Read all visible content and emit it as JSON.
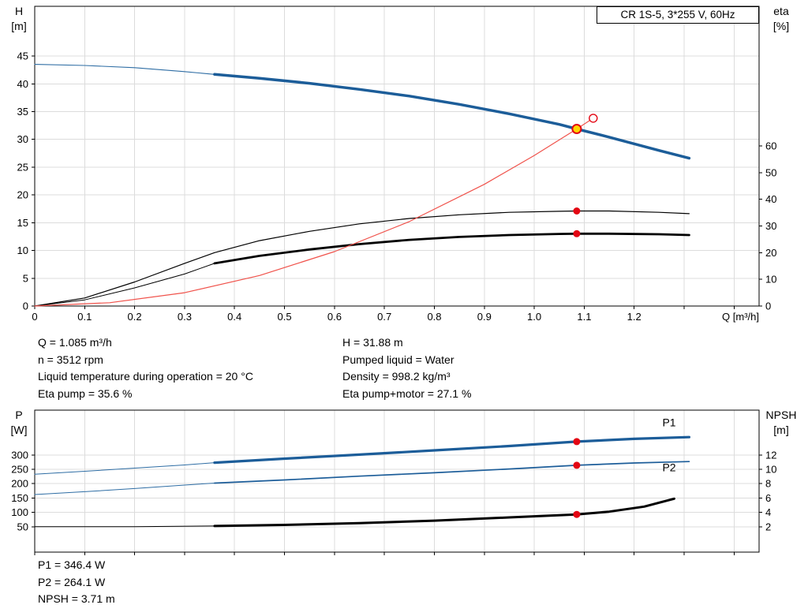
{
  "title_box": "CR 1S-5, 3*255 V, 60Hz",
  "colors": {
    "curve_blue": "#1c5d99",
    "curve_blue_thin": "#2e6da4",
    "curve_red": "#f0524b",
    "dot_red": "#e30613",
    "dot_yellow": "#ffd500",
    "grid": "#dcdcdc",
    "axis": "#000000"
  },
  "info_top": {
    "left": [
      "Q = 1.085 m³/h",
      "n = 3512 rpm",
      "Liquid temperature during operation = 20 °C",
      "Eta pump = 35.6 %"
    ],
    "right": [
      "H = 31.88 m",
      "Pumped liquid = Water",
      "Density = 998.2 kg/m³",
      "Eta pump+motor = 27.1 %"
    ]
  },
  "info_bottom": [
    "P1 = 346.4 W",
    "P2 = 264.1 W",
    "NPSH = 3.71 m"
  ],
  "chart_data": [
    {
      "type": "line",
      "title": "CR 1S-5, 3*255 V, 60Hz",
      "x_axis": {
        "label": "Q [m³/h]",
        "min": 0,
        "max": 1.45,
        "tick_values": [
          0,
          0.1,
          0.2,
          0.3,
          0.4,
          0.5,
          0.6,
          0.7,
          0.8,
          0.9,
          1.0,
          1.1,
          1.2,
          1.3,
          1.4
        ],
        "tick_labels": [
          "0",
          "0.1",
          "0.2",
          "0.3",
          "0.4",
          "0.5",
          "0.6",
          "0.7",
          "0.8",
          "0.9",
          "1.0",
          "1.1",
          "1.2"
        ]
      },
      "y_left": {
        "label": "H",
        "unit": "[m]",
        "min": 0,
        "max": 53.95,
        "tick_values": [
          0,
          5,
          10,
          15,
          20,
          25,
          30,
          35,
          40,
          45
        ],
        "tick_labels": [
          "0",
          "5",
          "10",
          "15",
          "20",
          "25",
          "30",
          "35",
          "40",
          "45"
        ]
      },
      "y_right": {
        "label": "eta",
        "unit": "[%]",
        "min": 0,
        "max": 112.3,
        "tick_values": [
          0,
          10,
          20,
          30,
          40,
          50,
          60
        ],
        "tick_labels": [
          "0",
          "10",
          "20",
          "30",
          "40",
          "50",
          "60"
        ]
      },
      "series": [
        {
          "name": "qh-ext",
          "axis": "left",
          "color": "#2e6da4",
          "width": 1.1,
          "points": [
            [
              0,
              43.5
            ],
            [
              0.1,
              43.3
            ],
            [
              0.2,
              42.9
            ],
            [
              0.3,
              42.2
            ],
            [
              0.36,
              41.7
            ]
          ]
        },
        {
          "name": "qh",
          "axis": "left",
          "color": "#1c5d99",
          "width": 3.5,
          "points": [
            [
              0.36,
              41.7
            ],
            [
              0.45,
              41.0
            ],
            [
              0.55,
              40.1
            ],
            [
              0.65,
              39.0
            ],
            [
              0.75,
              37.8
            ],
            [
              0.85,
              36.3
            ],
            [
              0.95,
              34.6
            ],
            [
              1.05,
              32.7
            ],
            [
              1.085,
              31.88
            ],
            [
              1.15,
              30.4
            ],
            [
              1.25,
              28.0
            ],
            [
              1.31,
              26.6
            ]
          ]
        },
        {
          "name": "eta-pump",
          "axis": "right",
          "color": "#000000",
          "width": 1.2,
          "points": [
            [
              0,
              0
            ],
            [
              0.1,
              3
            ],
            [
              0.2,
              9
            ],
            [
              0.3,
              16
            ],
            [
              0.36,
              20
            ],
            [
              0.45,
              24.5
            ],
            [
              0.55,
              28
            ],
            [
              0.65,
              30.8
            ],
            [
              0.75,
              32.8
            ],
            [
              0.85,
              34.2
            ],
            [
              0.95,
              35.1
            ],
            [
              1.05,
              35.5
            ],
            [
              1.085,
              35.6
            ],
            [
              1.15,
              35.6
            ],
            [
              1.25,
              35.1
            ],
            [
              1.31,
              34.6
            ]
          ]
        },
        {
          "name": "eta-pump-motor-ext",
          "axis": "right",
          "color": "#000000",
          "width": 1,
          "points": [
            [
              0,
              0
            ],
            [
              0.1,
              2.3
            ],
            [
              0.2,
              6.8
            ],
            [
              0.3,
              12
            ],
            [
              0.36,
              16
            ]
          ]
        },
        {
          "name": "eta-pump-motor",
          "axis": "right",
          "color": "#000000",
          "width": 2.8,
          "points": [
            [
              0.36,
              16
            ],
            [
              0.45,
              18.8
            ],
            [
              0.55,
              21.2
            ],
            [
              0.65,
              23.2
            ],
            [
              0.75,
              24.8
            ],
            [
              0.85,
              25.9
            ],
            [
              0.95,
              26.6
            ],
            [
              1.05,
              27.0
            ],
            [
              1.085,
              27.1
            ],
            [
              1.15,
              27.1
            ],
            [
              1.25,
              26.9
            ],
            [
              1.31,
              26.6
            ]
          ]
        },
        {
          "name": "system-curve",
          "axis": "left",
          "color": "#f0524b",
          "width": 1.2,
          "points": [
            [
              0,
              0
            ],
            [
              0.15,
              0.6
            ],
            [
              0.3,
              2.4
            ],
            [
              0.45,
              5.5
            ],
            [
              0.6,
              9.8
            ],
            [
              0.75,
              15.2
            ],
            [
              0.9,
              21.9
            ],
            [
              1.0,
              27.1
            ],
            [
              1.085,
              31.88
            ],
            [
              1.118,
              33.8
            ]
          ]
        }
      ],
      "markers": [
        {
          "kind": "open-ring",
          "axis": "left",
          "q": 1.118,
          "v": 33.8
        },
        {
          "kind": "duty-dot",
          "axis": "left",
          "q": 1.085,
          "v": 31.88
        },
        {
          "kind": "red-dot",
          "axis": "right",
          "q": 1.085,
          "v": 35.6
        },
        {
          "kind": "red-dot",
          "axis": "right",
          "q": 1.085,
          "v": 27.1
        }
      ],
      "curve_labels": []
    },
    {
      "type": "line",
      "title": "",
      "x_axis": {
        "label": "",
        "min": 0,
        "max": 1.45,
        "tick_values": [
          0,
          0.1,
          0.2,
          0.3,
          0.4,
          0.5,
          0.6,
          0.7,
          0.8,
          0.9,
          1.0,
          1.1,
          1.2,
          1.3,
          1.4
        ],
        "tick_labels": []
      },
      "y_left": {
        "label": "P",
        "unit": "[W]",
        "min": -38.5,
        "max": 456,
        "tick_values": [
          50,
          100,
          150,
          200,
          250,
          300
        ],
        "tick_labels": [
          "50",
          "100",
          "150",
          "200",
          "250",
          "300"
        ]
      },
      "y_right": {
        "label": "NPSH",
        "unit": "[m]",
        "min": -1.54,
        "max": 18.24,
        "tick_values": [
          2,
          4,
          6,
          8,
          10,
          12
        ],
        "tick_labels": [
          "2",
          "4",
          "6",
          "8",
          "10",
          "12"
        ]
      },
      "series": [
        {
          "name": "p1-ext",
          "axis": "left",
          "color": "#2e6da4",
          "width": 1,
          "points": [
            [
              0,
              233
            ],
            [
              0.1,
              243
            ],
            [
              0.2,
              254
            ],
            [
              0.3,
              265
            ],
            [
              0.36,
              273
            ]
          ]
        },
        {
          "name": "p1",
          "axis": "left",
          "color": "#1c5d99",
          "width": 3.2,
          "points": [
            [
              0.36,
              273
            ],
            [
              0.5,
              287
            ],
            [
              0.65,
              301
            ],
            [
              0.8,
              316
            ],
            [
              0.95,
              331
            ],
            [
              1.085,
              346.4
            ],
            [
              1.2,
              356
            ],
            [
              1.31,
              362
            ]
          ]
        },
        {
          "name": "p2-ext",
          "axis": "left",
          "color": "#2e6da4",
          "width": 1,
          "points": [
            [
              0,
              162
            ],
            [
              0.1,
              172
            ],
            [
              0.2,
              183
            ],
            [
              0.3,
              195
            ],
            [
              0.36,
              202
            ]
          ]
        },
        {
          "name": "p2",
          "axis": "left",
          "color": "#1c5d99",
          "width": 1.7,
          "points": [
            [
              0.36,
              202
            ],
            [
              0.5,
              213
            ],
            [
              0.65,
              226
            ],
            [
              0.8,
              238
            ],
            [
              0.95,
              251
            ],
            [
              1.085,
              264.1
            ],
            [
              1.2,
              272
            ],
            [
              1.31,
              277
            ]
          ]
        },
        {
          "name": "npsh-ext",
          "axis": "right",
          "color": "#000000",
          "width": 1,
          "points": [
            [
              0,
              2.0
            ],
            [
              0.2,
              2.0
            ],
            [
              0.36,
              2.1
            ]
          ]
        },
        {
          "name": "npsh",
          "axis": "right",
          "color": "#000000",
          "width": 3,
          "points": [
            [
              0.36,
              2.1
            ],
            [
              0.5,
              2.25
            ],
            [
              0.65,
              2.5
            ],
            [
              0.8,
              2.85
            ],
            [
              0.95,
              3.3
            ],
            [
              1.085,
              3.71
            ],
            [
              1.15,
              4.1
            ],
            [
              1.22,
              4.8
            ],
            [
              1.28,
              5.9
            ]
          ]
        }
      ],
      "markers": [
        {
          "kind": "red-dot",
          "axis": "left",
          "q": 1.085,
          "v": 346.4
        },
        {
          "kind": "red-dot",
          "axis": "left",
          "q": 1.085,
          "v": 264.1
        },
        {
          "kind": "red-dot",
          "axis": "right",
          "q": 1.085,
          "v": 3.71
        }
      ],
      "curve_labels": [
        {
          "text": "P1",
          "axis": "left",
          "q": 1.27,
          "v": 400,
          "color": "#1c5d99"
        },
        {
          "text": "P2",
          "axis": "left",
          "q": 1.27,
          "v": 243,
          "color": "#1c5d99"
        }
      ]
    }
  ]
}
